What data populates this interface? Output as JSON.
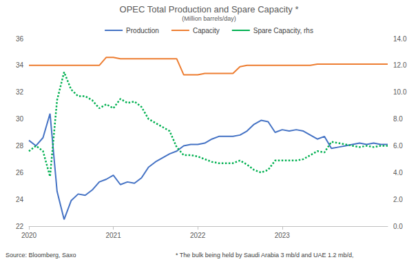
{
  "chart_data": {
    "type": "line",
    "title": "OPEC Total Production and Spare Capacity *",
    "subtitle": "(Million barrels/day)",
    "annotations": [
      "Source: Bloomberg, Saxo",
      "* The bulk being held by Saudi Arabia 3 mb/d and UAE 1.2 mb/d,"
    ],
    "categories": [
      "2020",
      null,
      null,
      null,
      null,
      null,
      null,
      null,
      null,
      null,
      null,
      null,
      "2021",
      null,
      null,
      null,
      null,
      null,
      null,
      null,
      null,
      null,
      null,
      null,
      "2022",
      null,
      null,
      null,
      null,
      null,
      null,
      null,
      null,
      null,
      null,
      null,
      "2023",
      null,
      null,
      null,
      null,
      null,
      null,
      null,
      null,
      null,
      null,
      null,
      null,
      null,
      null,
      null
    ],
    "series": [
      {
        "name": "Production",
        "color": "#4472c4",
        "line_style": "solid",
        "marker": "none",
        "values": [
          28.4,
          28.0,
          28.6,
          30.4,
          24.6,
          22.5,
          23.9,
          24.4,
          24.3,
          24.7,
          25.3,
          25.5,
          25.8,
          25.1,
          25.3,
          25.2,
          25.6,
          26.4,
          26.8,
          27.1,
          27.4,
          27.6,
          28.0,
          28.1,
          28.1,
          28.2,
          28.5,
          28.7,
          28.7,
          28.7,
          28.8,
          29.1,
          29.6,
          29.9,
          29.8,
          29.0,
          29.2,
          29.1,
          29.2,
          29.1,
          28.8,
          28.5,
          28.7,
          27.8,
          27.9,
          28.0,
          28.1,
          28.2,
          28.1,
          28.2,
          28.1,
          28.1
        ]
      },
      {
        "name": "Capacity",
        "color": "#ed7d31",
        "line_style": "solid",
        "marker": "none",
        "values": [
          34.0,
          34.0,
          34.0,
          34.0,
          34.0,
          34.0,
          34.0,
          34.0,
          34.0,
          34.0,
          34.0,
          34.6,
          34.6,
          34.5,
          34.5,
          34.5,
          34.5,
          34.5,
          34.5,
          34.5,
          34.5,
          34.5,
          33.3,
          33.3,
          33.3,
          33.4,
          33.4,
          33.4,
          33.4,
          33.4,
          33.9,
          34.0,
          34.0,
          34.0,
          34.0,
          34.0,
          34.0,
          34.0,
          34.0,
          34.0,
          34.0,
          34.1,
          34.1,
          34.1,
          34.1,
          34.1,
          34.1,
          34.1,
          34.1,
          34.1,
          34.1,
          34.1
        ]
      },
      {
        "name": "Spare Capacity, rhs",
        "color": "#00b050",
        "line_style": "dotted",
        "marker": "none",
        "axis": "y2",
        "values": [
          5.6,
          6.0,
          5.6,
          3.7,
          9.4,
          11.5,
          10.2,
          9.7,
          9.7,
          9.4,
          8.8,
          9.1,
          8.8,
          9.5,
          9.2,
          9.3,
          8.9,
          8.0,
          7.7,
          7.4,
          7.1,
          5.9,
          5.3,
          5.3,
          5.2,
          5.0,
          4.8,
          4.7,
          4.7,
          4.7,
          4.9,
          4.6,
          4.2,
          4.0,
          4.2,
          4.9,
          4.9,
          4.9,
          4.9,
          5.0,
          5.3,
          5.6,
          5.5,
          6.3,
          6.2,
          6.1,
          6.0,
          5.9,
          6.0,
          5.9,
          6.0,
          6.0
        ]
      }
    ],
    "ylim": [
      22,
      36
    ],
    "yticks": [
      22,
      24,
      26,
      28,
      30,
      32,
      34,
      36
    ],
    "y2lim": [
      0,
      14
    ],
    "y2ticks": [
      {
        "value": 0,
        "label": "0.0"
      },
      {
        "value": 2,
        "label": "2.0"
      },
      {
        "value": 4,
        "label": "4.0"
      },
      {
        "value": 6,
        "label": "6.0"
      },
      {
        "value": 8,
        "label": "8.0"
      },
      {
        "value": 10,
        "label": "10.0"
      },
      {
        "value": 12,
        "label": "12.0"
      },
      {
        "value": 14,
        "label": "14.0"
      }
    ],
    "grid": false,
    "legend": "top"
  }
}
